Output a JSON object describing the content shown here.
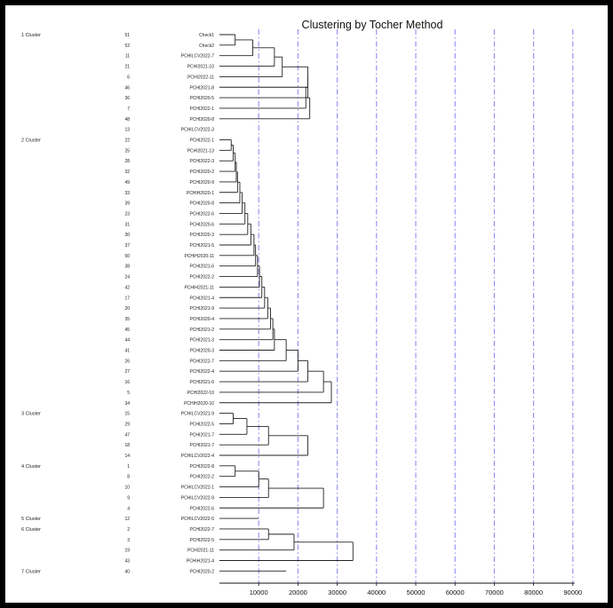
{
  "chart_data": {
    "type": "dendrogram",
    "title": "Clustering by Tocher Method",
    "xticks": [
      10000,
      20000,
      30000,
      40000,
      50000,
      60000,
      70000,
      80000,
      90000
    ],
    "xlim": [
      0,
      90000
    ],
    "grid": "vertical dash-dot lines at each tick",
    "grid_color": "#8c8cf0",
    "line_color": "#222222",
    "clusters": [
      {
        "name": "1 Cluster",
        "leaves": [
          {
            "no": "51",
            "name": "Check1"
          },
          {
            "no": "52",
            "name": "Check2"
          },
          {
            "no": "11",
            "name": "PCHILCV2022-7"
          },
          {
            "no": "21",
            "name": "PCHI2021-10"
          },
          {
            "no": "6",
            "name": "PCHI2022-11"
          },
          {
            "no": "46",
            "name": "PCHI2021-8"
          },
          {
            "no": "36",
            "name": "PCHI2020-5"
          },
          {
            "no": "7",
            "name": "PCHI2022-1"
          },
          {
            "no": "48",
            "name": "PCHI2020-8"
          },
          {
            "no": "13",
            "name": "PCHILCV2022-3"
          }
        ],
        "merge_heights": [
          4000,
          8500,
          14000,
          16000,
          22500,
          22500,
          22000,
          23000
        ]
      },
      {
        "name": "2 Cluster",
        "leaves": [
          {
            "no": "22",
            "name": "PCHI2022-1"
          },
          {
            "no": "25",
            "name": "PCHI2021-13"
          },
          {
            "no": "28",
            "name": "PCHI2022-3"
          },
          {
            "no": "32",
            "name": "PCHI2020-2"
          },
          {
            "no": "49",
            "name": "PCHI2020-9"
          },
          {
            "no": "33",
            "name": "PCHIH2020-1"
          },
          {
            "no": "39",
            "name": "PCHI2020-8"
          },
          {
            "no": "23",
            "name": "PCHI2022-6"
          },
          {
            "no": "31",
            "name": "PCHI2020-6"
          },
          {
            "no": "30",
            "name": "PCHI2020-3"
          },
          {
            "no": "37",
            "name": "PCHI2021-5"
          },
          {
            "no": "50",
            "name": "PCHIH2020-11"
          },
          {
            "no": "38",
            "name": "PCHI2021-6"
          },
          {
            "no": "24",
            "name": "PCHI2022-2"
          },
          {
            "no": "42",
            "name": "PCHIH2021-11"
          },
          {
            "no": "17",
            "name": "PCHI2021-4"
          },
          {
            "no": "20",
            "name": "PCHI2021-9"
          },
          {
            "no": "35",
            "name": "PCHI2020-4"
          },
          {
            "no": "45",
            "name": "PCHI2021-2"
          },
          {
            "no": "44",
            "name": "PCHI2021-3"
          },
          {
            "no": "41",
            "name": "PCHI2020-3"
          },
          {
            "no": "26",
            "name": "PCHI2022-7"
          },
          {
            "no": "27",
            "name": "PCHI2022-4"
          },
          {
            "no": "16",
            "name": "PCHI2021-6"
          },
          {
            "no": "5",
            "name": "PCHI2022-10"
          },
          {
            "no": "34",
            "name": "PCHIH2020-10"
          }
        ],
        "merge_heights": [
          3000,
          3500,
          4000,
          4300,
          4600,
          5200,
          5800,
          6500,
          7200,
          8000,
          8800,
          9200,
          9700,
          10200,
          10800,
          11500,
          12300,
          13000,
          13600,
          14000,
          17000,
          20000,
          22500,
          26500,
          28500
        ]
      },
      {
        "name": "3 Cluster",
        "leaves": [
          {
            "no": "15",
            "name": "PCHILCV2021-9"
          },
          {
            "no": "29",
            "name": "PCHI2022-5"
          },
          {
            "no": "47",
            "name": "PCHI2021-7"
          },
          {
            "no": "18",
            "name": "PCHI2021-7"
          },
          {
            "no": "14",
            "name": "PCHILCV2022-4"
          }
        ],
        "merge_heights": [
          3500,
          7000,
          12500,
          22500
        ]
      },
      {
        "name": "4 Cluster",
        "leaves": [
          {
            "no": "1",
            "name": "PCHI2022-8"
          },
          {
            "no": "8",
            "name": "PCHI2022-2"
          },
          {
            "no": "10",
            "name": "PCHILCV2022-1"
          },
          {
            "no": "9",
            "name": "PCHILCV2022-9"
          },
          {
            "no": "4",
            "name": "PCHI2022-6"
          }
        ],
        "merge_heights": [
          4000,
          10000,
          12500,
          26500
        ]
      },
      {
        "name": "5 Cluster",
        "leaves": [
          {
            "no": "12",
            "name": "PCHILCV2022-5"
          }
        ],
        "merge_heights": []
      },
      {
        "name": "6 Cluster",
        "leaves": [
          {
            "no": "2",
            "name": "PCHI2022-7"
          },
          {
            "no": "3",
            "name": "PCHI2022-5"
          },
          {
            "no": "19",
            "name": "PCHI2021-11"
          },
          {
            "no": "43",
            "name": "PCHIH2021-4"
          }
        ],
        "merge_heights": [
          12500,
          19000,
          34000
        ]
      },
      {
        "name": "7 Cluster",
        "leaves": [
          {
            "no": "40",
            "name": "PCHI2020-2"
          }
        ],
        "merge_heights": []
      }
    ]
  }
}
